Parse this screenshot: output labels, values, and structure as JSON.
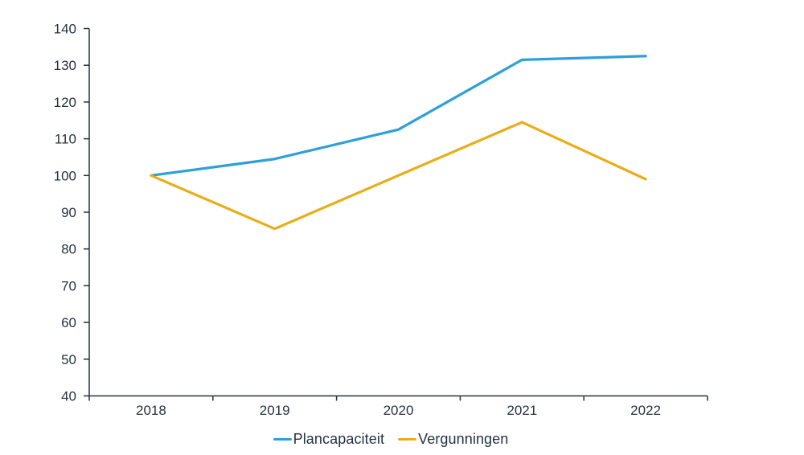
{
  "chart_data": {
    "type": "line",
    "categories": [
      "2018",
      "2019",
      "2020",
      "2021",
      "2022"
    ],
    "series": [
      {
        "name": "Plancapaciteit",
        "color": "#2CA0DA",
        "values": [
          100,
          104.5,
          112.5,
          131.5,
          132.5
        ]
      },
      {
        "name": "Vergunningen",
        "color": "#E9AD17",
        "values": [
          100,
          85.5,
          100,
          114.5,
          99
        ]
      }
    ],
    "yticks": [
      40,
      50,
      60,
      70,
      80,
      90,
      100,
      110,
      120,
      130,
      140
    ],
    "ylim": [
      40,
      140
    ],
    "grid": false,
    "legend_position": "bottom",
    "axis_color": "#243240",
    "label_color": "#243240"
  }
}
